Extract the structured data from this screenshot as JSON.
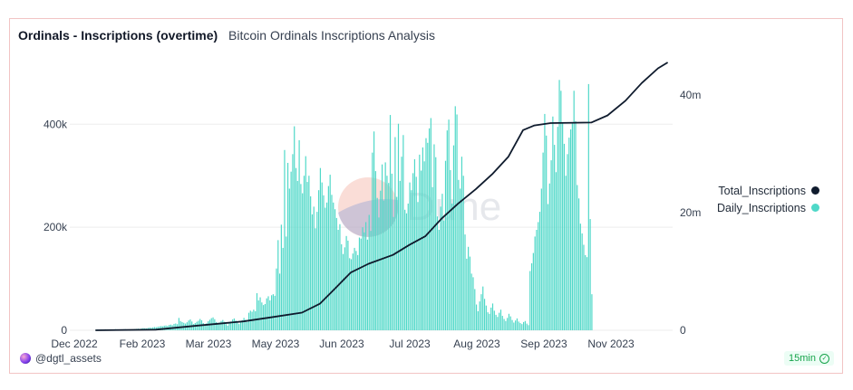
{
  "header": {
    "title": "Ordinals - Inscriptions (overtime)",
    "subtitle": "Bitcoin Ordinals Inscriptions Analysis"
  },
  "footer": {
    "user": "@dgtl_assets",
    "refresh_badge": "15min"
  },
  "colors": {
    "daily": "#4fd8c8",
    "total": "#0f1b2d",
    "grid": "#eeeeee",
    "axis_text": "#374151",
    "watermark": "#f3b3a6"
  },
  "chart_data": {
    "type": "bar+line",
    "x_tick_labels": [
      "Dec 2022",
      "Feb 2023",
      "Mar 2023",
      "May 2023",
      "Jun 2023",
      "Jul 2023",
      "Aug 2023",
      "Sep 2023",
      "Nov 2023"
    ],
    "y_left": {
      "ticks": [
        "0",
        "200k",
        "400k"
      ],
      "range": [
        0,
        520000
      ]
    },
    "y_right": {
      "ticks": [
        "0",
        "20m",
        "40m"
      ],
      "range": [
        0,
        45500000
      ]
    },
    "legend_position": "right",
    "series": [
      {
        "name": "Total_Inscriptions",
        "kind": "line",
        "axis": "right",
        "points": [
          [
            "2022-12-14",
            0
          ],
          [
            "2023-01-20",
            0.1
          ],
          [
            "2023-02-15",
            0.8
          ],
          [
            "2023-03-15",
            1.5
          ],
          [
            "2023-04-01",
            2.2
          ],
          [
            "2023-04-20",
            3.0
          ],
          [
            "2023-05-01",
            4.5
          ],
          [
            "2023-05-10",
            7.0
          ],
          [
            "2023-05-20",
            9.8
          ],
          [
            "2023-05-31",
            11.3
          ],
          [
            "2023-06-15",
            12.8
          ],
          [
            "2023-06-25",
            14.5
          ],
          [
            "2023-07-05",
            16.0
          ],
          [
            "2023-07-15",
            19.0
          ],
          [
            "2023-07-25",
            21.5
          ],
          [
            "2023-08-05",
            24.0
          ],
          [
            "2023-08-15",
            26.5
          ],
          [
            "2023-08-25",
            29.5
          ],
          [
            "2023-09-03",
            34.0
          ],
          [
            "2023-09-10",
            34.8
          ],
          [
            "2023-09-20",
            35.2
          ],
          [
            "2023-10-15",
            35.3
          ],
          [
            "2023-10-25",
            36.5
          ],
          [
            "2023-11-05",
            39.0
          ],
          [
            "2023-11-15",
            42.0
          ],
          [
            "2023-11-25",
            44.5
          ],
          [
            "2023-12-01",
            45.5
          ]
        ]
      },
      {
        "name": "Daily_Inscriptions",
        "kind": "bar",
        "axis": "left",
        "start_date": "2022-12-14",
        "values": [
          1200,
          1500,
          1100,
          1800,
          1300,
          1600,
          2000,
          1400,
          1700,
          1900,
          1500,
          1300,
          2100,
          1800,
          1600,
          1400,
          1700,
          1900,
          2200,
          1500,
          1800,
          1600,
          1300,
          1900,
          2400,
          2800,
          3100,
          2600,
          3500,
          4200,
          3900,
          3600,
          4500,
          5200,
          4800,
          5600,
          6200,
          5900,
          6800,
          7400,
          8100,
          7600,
          8900,
          9300,
          8600,
          10200,
          11000,
          9800,
          12400,
          13200,
          11800,
          24000,
          18000,
          16000,
          14500,
          13000,
          15500,
          19000,
          21000,
          17000,
          12000,
          14000,
          16500,
          18500,
          22000,
          19500,
          14000,
          11000,
          13500,
          17500,
          20500,
          23500,
          25000,
          21500,
          16000,
          12500,
          15000,
          18000,
          20000,
          16500,
          12000,
          9000,
          14000,
          17000,
          21000,
          23000,
          19000,
          15000,
          12000,
          16000,
          19500,
          24000,
          20500,
          16000,
          34000,
          38000,
          36000,
          40000,
          37000,
          72000,
          58000,
          64000,
          54000,
          49000,
          51000,
          62000,
          66000,
          58000,
          68000,
          70000,
          67000,
          120000,
          175000,
          110000,
          205000,
          160000,
          350000,
          182000,
          325000,
          275000,
          308000,
          342000,
          396000,
          315000,
          290000,
          369000,
          284000,
          266000,
          300000,
          338000,
          288000,
          300000,
          260000,
          225000,
          240000,
          198000,
          230000,
          272000,
          315000,
          287000,
          262000,
          238000,
          248000,
          280000,
          302000,
          263000,
          248000,
          235000,
          218000,
          195000,
          206000,
          167000,
          148000,
          161000,
          183000,
          174000,
          140000,
          138000,
          149000,
          160000,
          154000,
          146000,
          180000,
          178000,
          200000,
          190000,
          210000,
          176000,
          224000,
          193000,
          345000,
          386000,
          309000,
          257000,
          219000,
          271000,
          322000,
          252000,
          326000,
          300000,
          286000,
          418000,
          304000,
          220000,
          375000,
          259000,
          401000,
          290000,
          337000,
          379000,
          234000,
          227000,
          246000,
          287000,
          272000,
          305000,
          332000,
          298000,
          249000,
          341000,
          310000,
          355000,
          328000,
          373000,
          364000,
          392000,
          412000,
          278000,
          361000,
          336000,
          221000,
          195000,
          240000,
          265000,
          213000,
          329000,
          388000,
          409000,
          311000,
          246000,
          359000,
          435000,
          419000,
          292000,
          275000,
          337000,
          300000,
          186000,
          139000,
          162000,
          143000,
          110000,
          103000,
          80000,
          50000,
          37000,
          56000,
          70000,
          85000,
          61000,
          48000,
          35000,
          32000,
          44000,
          52000,
          38000,
          30000,
          26000,
          34000,
          40000,
          28000,
          22000,
          18000,
          24000,
          32000,
          27000,
          20000,
          15000,
          19000,
          23000,
          17000,
          14000,
          12000,
          16000,
          18000,
          13000,
          10000,
          115000,
          130000,
          150000,
          182000,
          195000,
          210000,
          230000,
          275000,
          345000,
          420000,
          378000,
          245000,
          285000,
          330000,
          415000,
          360000,
          307000,
          395000,
          486000,
          465000,
          402000,
          362000,
          300000,
          342000,
          374000,
          390000,
          404000,
          465000,
          406000,
          282000,
          256000,
          207000,
          188000,
          166000,
          146000,
          142000,
          478000,
          216000,
          70000
        ]
      }
    ]
  },
  "watermark": {
    "text": "Dune"
  }
}
